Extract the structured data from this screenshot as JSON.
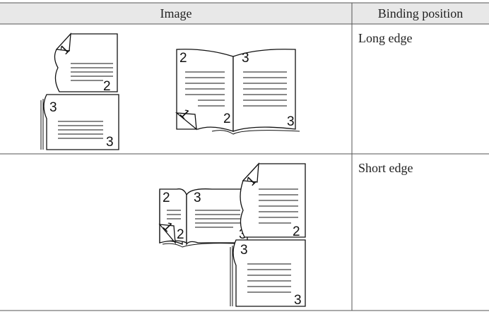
{
  "table": {
    "headers": [
      "Image",
      "Binding position"
    ],
    "rows": [
      [
        "Long edge"
      ],
      [
        "Short edge"
      ]
    ]
  },
  "page_numbers": [
    "1",
    "2",
    "3"
  ]
}
